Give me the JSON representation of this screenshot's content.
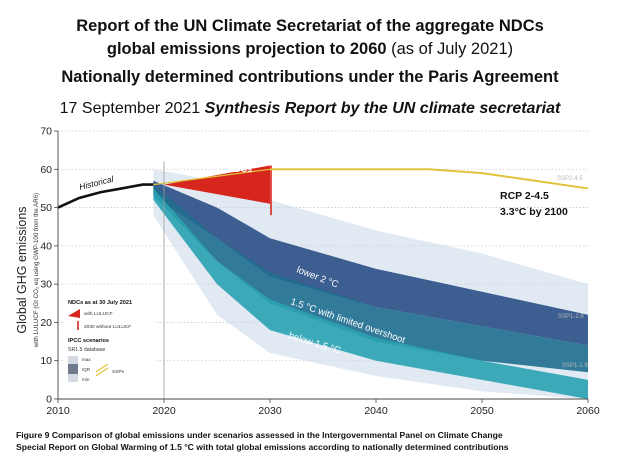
{
  "header": {
    "line1": "Report of the UN Climate Secretariat of the aggregate NDCs",
    "line2_bold": "global emissions projection to 2060",
    "line2_rest": " (as of July 2021)",
    "line3": "Nationally determined contributions under the Paris Agreement",
    "line4_date": "17 September 2021 ",
    "line4_italic": "Synthesis Report by the UN climate secretariat"
  },
  "caption": {
    "line1": "Figure 9 Comparison of global emissions under scenarios assessed in the Intergovernmental Panel on Climate Change",
    "line2": "Special Report on Global Warming of 1.5 °C with total global emissions according to nationally determined contributions"
  },
  "chart_data": {
    "type": "area",
    "ylabel": "Global GHG emissions",
    "ylabel_sub": "with LULUCF (Gt CO₂ eq using GWP-100 from the AR6)",
    "x_ticks": [
      "2010",
      "2020",
      "2030",
      "2040",
      "2050",
      "2060"
    ],
    "y_ticks": [
      "0",
      "10",
      "20",
      "30",
      "40",
      "50",
      "60",
      "70"
    ],
    "xlim": [
      2010,
      2060
    ],
    "ylim": [
      0,
      70
    ],
    "grid": true,
    "series": [
      {
        "name": "Historical",
        "color": "#111111",
        "x": [
          2010,
          2012,
          2014,
          2016,
          2018,
          2019
        ],
        "y": [
          50,
          52.5,
          54,
          55,
          56,
          56
        ]
      },
      {
        "name": "lower 2 °C",
        "color": "#2b4f86",
        "x": [
          2019,
          2025,
          2030,
          2040,
          2050,
          2060
        ],
        "y_low": [
          53,
          42,
          32,
          24,
          19,
          14
        ],
        "y_high": [
          57,
          50,
          42,
          34,
          28,
          22
        ]
      },
      {
        "name": "1.5 °C with limited overshoot",
        "color": "#1f6e90",
        "x": [
          2019,
          2025,
          2030,
          2040,
          2050,
          2060
        ],
        "y_low": [
          53,
          36,
          25,
          15,
          10,
          7
        ],
        "y_high": [
          56,
          42,
          33,
          24,
          19,
          14
        ]
      },
      {
        "name": "below 1.5 °C",
        "color": "#2aa2b2",
        "x": [
          2019,
          2025,
          2030,
          2040,
          2050,
          2060
        ],
        "y_low": [
          52,
          30,
          18,
          10,
          5,
          0
        ],
        "y_high": [
          55,
          36,
          26,
          16,
          10,
          5
        ]
      },
      {
        "name": "NDCs",
        "color": "#d7261e",
        "x": [
          2020,
          2030
        ],
        "y_low": [
          56,
          51
        ],
        "y_high": [
          56,
          61
        ]
      },
      {
        "name": "SSP2-4.5",
        "color": "#e2c23a",
        "x": [
          2030,
          2040,
          2045,
          2050,
          2055,
          2060
        ],
        "y": [
          60,
          60,
          60,
          59,
          57,
          55
        ]
      }
    ],
    "labels": {
      "historical": "Historical",
      "ndcs": "NDCs",
      "lower2": "lower 2 °C",
      "limited": "1.5 °C with limited overshoot",
      "below15": "below 1.5 °C",
      "ssp245": "SSP2-4.5",
      "ssp126": "SSP1-2.6",
      "ssp119": "SSP1-1.9"
    },
    "annotation": {
      "line1": "RCP 2-4.5",
      "line2": "3.3°C by 2100"
    },
    "legend": {
      "position": "bottom-left",
      "ndcs_title": "NDCs as at 30 July 2021",
      "with_lulucf": "with LULUCF",
      "without_lulucf": "2030 without LULUCF",
      "ipcc_title": "IPCC scenarios",
      "sr15": "SR1.5 database",
      "max": "max",
      "iqr": "IQR",
      "min": "min",
      "ssps": "SSPs"
    }
  }
}
